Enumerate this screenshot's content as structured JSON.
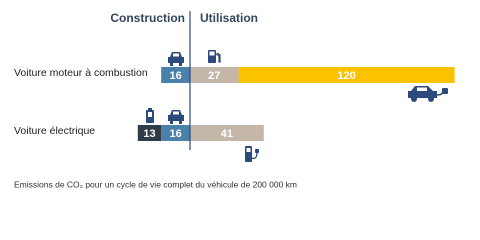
{
  "chart_data": {
    "type": "bar",
    "orientation": "horizontal",
    "categories": [
      "Voiture moteur à combustion",
      "Voiture électrique"
    ],
    "groups": [
      {
        "label": "Construction",
        "side": "left",
        "series": [
          {
            "color": "#4a80aa",
            "values": [
              16,
              16
            ]
          },
          {
            "color": "#2f3b47",
            "values": [
              null,
              13
            ]
          }
        ]
      },
      {
        "label": "Utilisation",
        "side": "right",
        "series": [
          {
            "color": "#c4b6a9",
            "values": [
              27,
              41
            ]
          },
          {
            "color": "#fbc200",
            "values": [
              120,
              null
            ]
          }
        ]
      }
    ],
    "caption": "Emissions de CO₂ pour un cycle de vie complet du véhicule de 200 000 km"
  }
}
